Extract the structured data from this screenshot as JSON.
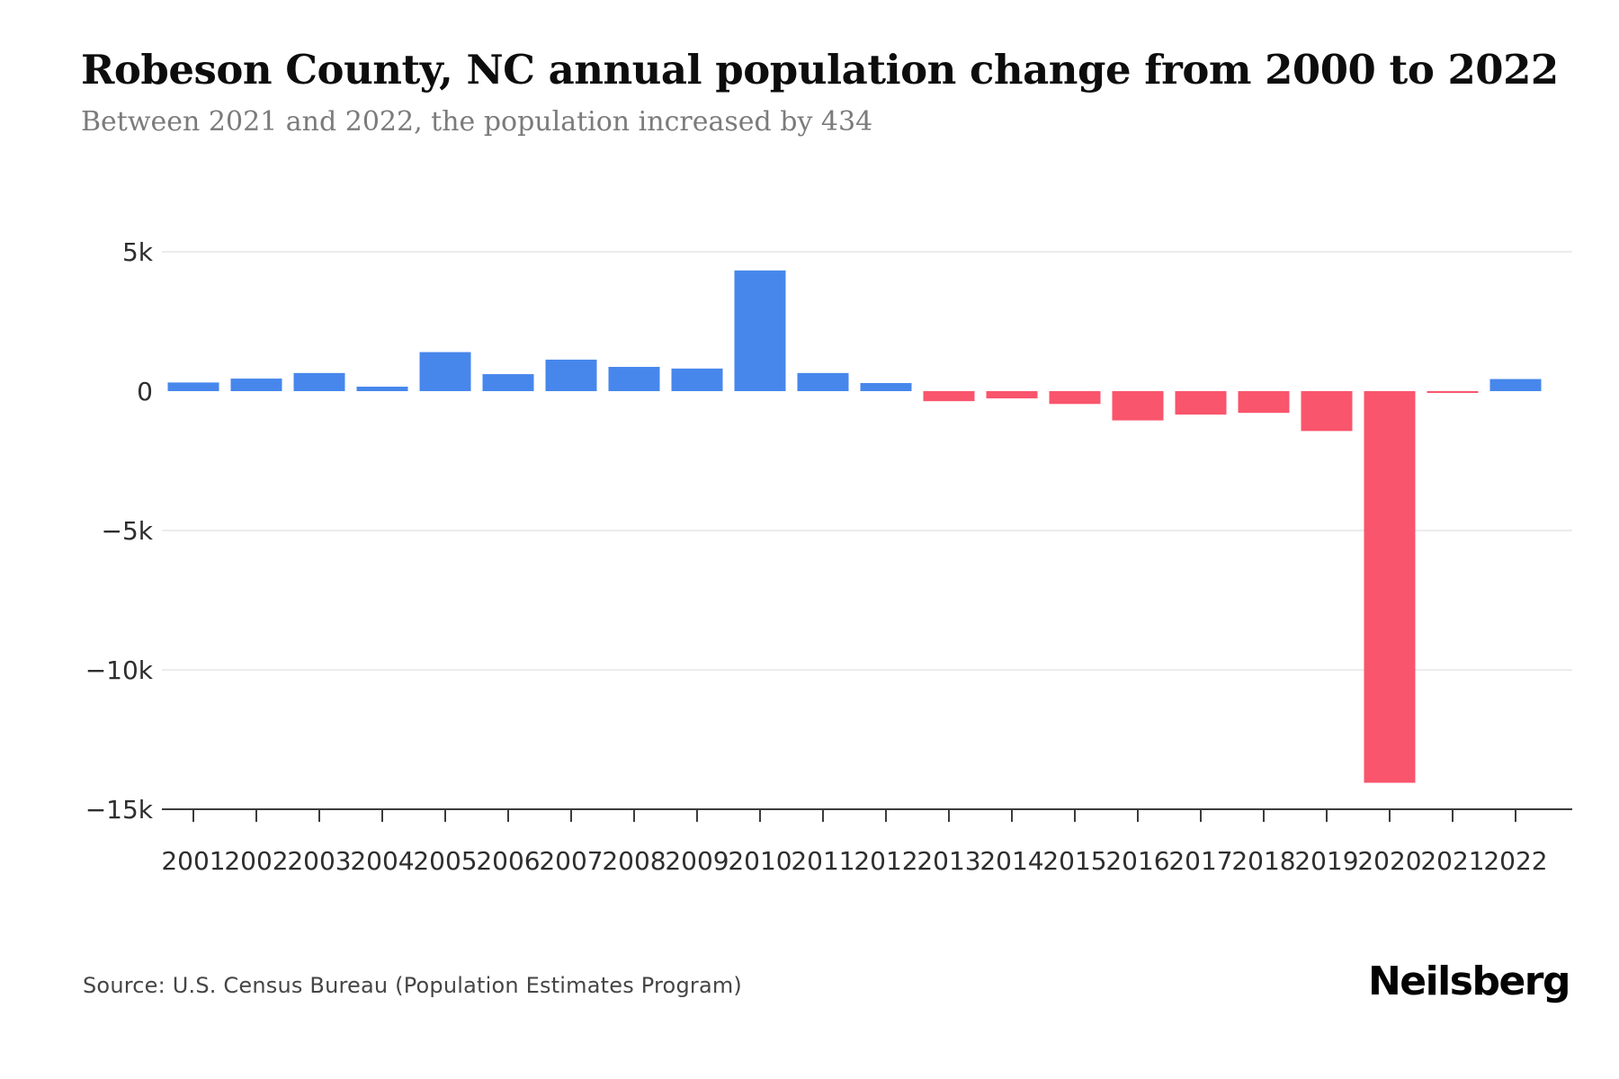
{
  "page": {
    "title": "Robeson County, NC annual population change from 2000 to 2022",
    "subtitle": "Between 2021 and 2022, the population increased by 434",
    "source": "Source: U.S. Census Bureau (Population Estimates Program)",
    "brand": "Neilsberg"
  },
  "chart_data": {
    "type": "bar",
    "title": "Robeson County, NC annual population change from 2000 to 2022",
    "subtitle": "Between 2021 and 2022, the population increased by 434",
    "xlabel": "",
    "ylabel": "",
    "categories": [
      "2001",
      "2002",
      "2003",
      "2004",
      "2005",
      "2006",
      "2007",
      "2008",
      "2009",
      "2010",
      "2011",
      "2012",
      "2013",
      "2014",
      "2015",
      "2016",
      "2017",
      "2018",
      "2019",
      "2020",
      "2021",
      "2022"
    ],
    "values": [
      310,
      450,
      650,
      160,
      1400,
      610,
      1130,
      870,
      810,
      4330,
      650,
      290,
      -360,
      -260,
      -460,
      -1050,
      -840,
      -780,
      -1430,
      -14050,
      -60,
      434
    ],
    "series_name": "Annual population change",
    "y_ticks": [
      {
        "label": "5k",
        "value": 5000
      },
      {
        "label": "0",
        "value": 0
      },
      {
        "label": "−5k",
        "value": -5000
      },
      {
        "label": "−10k",
        "value": -10000
      },
      {
        "label": "−15k",
        "value": -15000
      }
    ],
    "ylim": [
      -15000,
      5000
    ],
    "grid": "horizontal",
    "legend": "none",
    "positive_color": "#4787EC",
    "negative_color": "#F9556C"
  }
}
